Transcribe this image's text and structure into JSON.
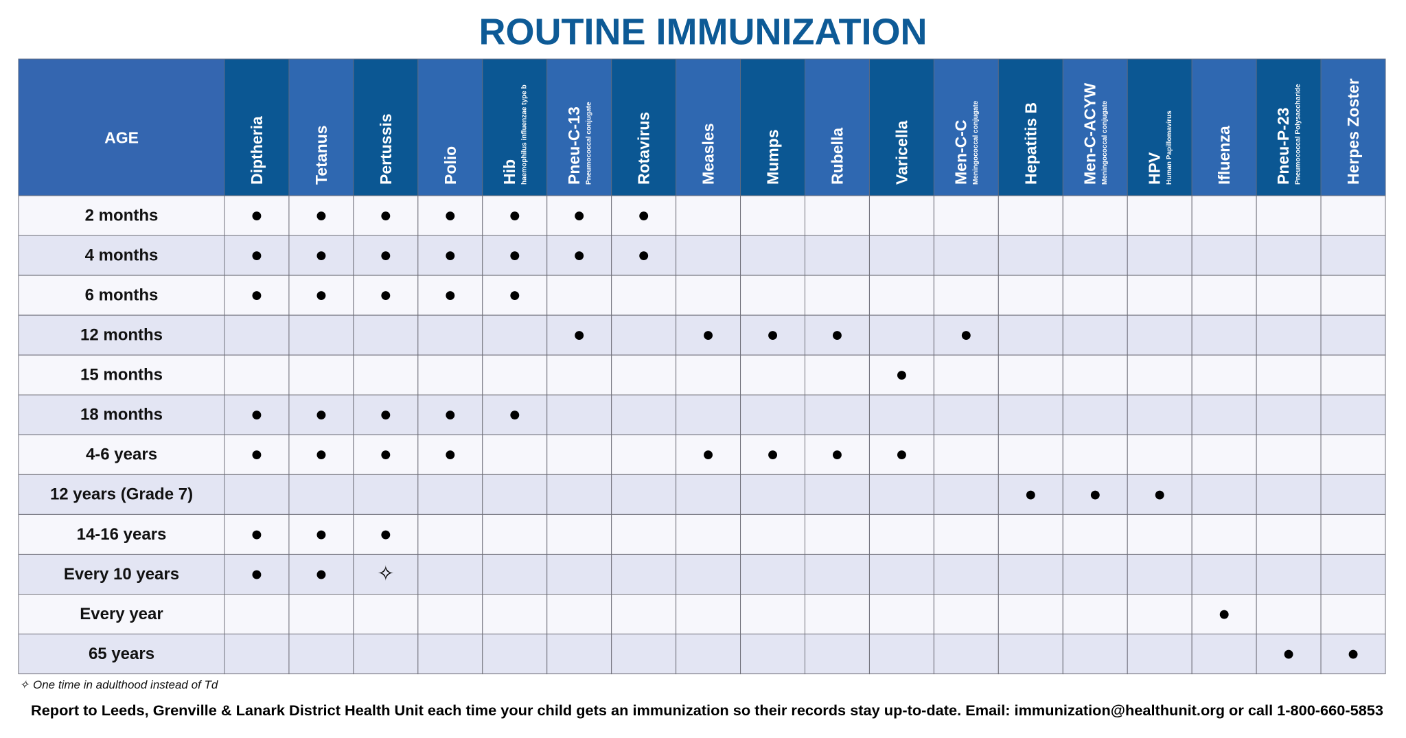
{
  "header": {
    "title": "ROUTINE IMMUNIZATION"
  },
  "table": {
    "age_header": "AGE",
    "columns": [
      {
        "name": "Diptheria"
      },
      {
        "name": "Tetanus"
      },
      {
        "name": "Pertussis"
      },
      {
        "name": "Polio"
      },
      {
        "name": "Hib",
        "subtitle": "haemophilus influenzae type b"
      },
      {
        "name": "Pneu-C-13",
        "subtitle": "Pneumococcal conjugate"
      },
      {
        "name": "Rotavirus"
      },
      {
        "name": "Measles"
      },
      {
        "name": "Mumps"
      },
      {
        "name": "Rubella"
      },
      {
        "name": "Varicella"
      },
      {
        "name": "Men-C-C",
        "subtitle": "Meningococcal conjugate"
      },
      {
        "name": "Hepatitis B"
      },
      {
        "name": "Men-C-ACYW",
        "subtitle": "Meningococcal conjugate"
      },
      {
        "name": "HPV",
        "subtitle": "Human Papillomavirus"
      },
      {
        "name": "Ifluenza"
      },
      {
        "name": "Pneu-P-23",
        "subtitle": "Pneumococcal Polysaccharide"
      },
      {
        "name": "Herpes Zoster"
      }
    ],
    "rows": [
      {
        "age": "2 months",
        "cells": [
          "●",
          "●",
          "●",
          "●",
          "●",
          "●",
          "●",
          null,
          null,
          null,
          null,
          null,
          null,
          null,
          null,
          null,
          null,
          null
        ]
      },
      {
        "age": "4 months",
        "cells": [
          "●",
          "●",
          "●",
          "●",
          "●",
          "●",
          "●",
          null,
          null,
          null,
          null,
          null,
          null,
          null,
          null,
          null,
          null,
          null
        ]
      },
      {
        "age": "6 months",
        "cells": [
          "●",
          "●",
          "●",
          "●",
          "●",
          null,
          null,
          null,
          null,
          null,
          null,
          null,
          null,
          null,
          null,
          null,
          null,
          null
        ]
      },
      {
        "age": "12 months",
        "cells": [
          null,
          null,
          null,
          null,
          null,
          "●",
          null,
          "●",
          "●",
          "●",
          null,
          "●",
          null,
          null,
          null,
          null,
          null,
          null
        ]
      },
      {
        "age": "15 months",
        "cells": [
          null,
          null,
          null,
          null,
          null,
          null,
          null,
          null,
          null,
          null,
          "●",
          null,
          null,
          null,
          null,
          null,
          null,
          null
        ]
      },
      {
        "age": "18 months",
        "cells": [
          "●",
          "●",
          "●",
          "●",
          "●",
          null,
          null,
          null,
          null,
          null,
          null,
          null,
          null,
          null,
          null,
          null,
          null,
          null
        ]
      },
      {
        "age": "4-6 years",
        "cells": [
          "●",
          "●",
          "●",
          "●",
          null,
          null,
          null,
          "●",
          "●",
          "●",
          "●",
          null,
          null,
          null,
          null,
          null,
          null,
          null
        ]
      },
      {
        "age": "12 years (Grade 7)",
        "cells": [
          null,
          null,
          null,
          null,
          null,
          null,
          null,
          null,
          null,
          null,
          null,
          null,
          "●",
          "●",
          "●",
          null,
          null,
          null
        ]
      },
      {
        "age": "14-16 years",
        "cells": [
          "●",
          "●",
          "●",
          null,
          null,
          null,
          null,
          null,
          null,
          null,
          null,
          null,
          null,
          null,
          null,
          null,
          null,
          null
        ]
      },
      {
        "age": "Every 10 years",
        "cells": [
          "●",
          "●",
          "✧",
          null,
          null,
          null,
          null,
          null,
          null,
          null,
          null,
          null,
          null,
          null,
          null,
          null,
          null,
          null
        ]
      },
      {
        "age": "Every year",
        "cells": [
          null,
          null,
          null,
          null,
          null,
          null,
          null,
          null,
          null,
          null,
          null,
          null,
          null,
          null,
          null,
          "●",
          null,
          null
        ]
      },
      {
        "age": "65 years",
        "cells": [
          null,
          null,
          null,
          null,
          null,
          null,
          null,
          null,
          null,
          null,
          null,
          null,
          null,
          null,
          null,
          null,
          "●",
          "●"
        ]
      }
    ]
  },
  "footnote": {
    "symbol": "✧",
    "text": "One time in adulthood instead of Td"
  },
  "footer": "Report to Leeds, Grenville & Lanark District Health Unit each time your child gets an immunization so their records stay up-to-date. Email: immunization@healthunit.org or call 1-800-660-5853"
}
